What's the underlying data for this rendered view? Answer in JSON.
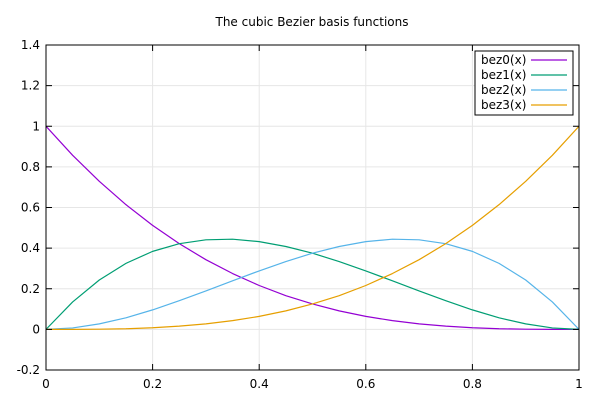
{
  "chart_data": {
    "type": "line",
    "title": "The cubic Bezier basis functions",
    "xlabel": "",
    "ylabel": "",
    "xlim": [
      0,
      1
    ],
    "ylim": [
      -0.2,
      1.4
    ],
    "x_ticks": [
      0,
      0.2,
      0.4,
      0.6,
      0.8,
      1
    ],
    "x_tick_labels": [
      "0",
      "0.2",
      "0.4",
      "0.6",
      "0.8",
      "1"
    ],
    "y_ticks": [
      -0.2,
      0,
      0.2,
      0.4,
      0.6,
      0.8,
      1,
      1.2,
      1.4
    ],
    "y_tick_labels": [
      "-0.2",
      "0",
      "0.2",
      "0.4",
      "0.6",
      "0.8",
      "1",
      "1.2",
      "1.4"
    ],
    "grid": true,
    "legend_position": "top-right",
    "x": [
      0,
      0.05,
      0.1,
      0.15,
      0.2,
      0.25,
      0.3,
      0.35,
      0.4,
      0.45,
      0.5,
      0.55,
      0.6,
      0.65,
      0.7,
      0.75,
      0.8,
      0.85,
      0.9,
      0.95,
      1
    ],
    "series": [
      {
        "name": "bez0(x)",
        "color": "#9400d3",
        "values": [
          1,
          0.857,
          0.729,
          0.614,
          0.512,
          0.422,
          0.343,
          0.275,
          0.216,
          0.166,
          0.125,
          0.091,
          0.064,
          0.043,
          0.027,
          0.016,
          0.008,
          0.003,
          0.001,
          0.0001,
          0
        ]
      },
      {
        "name": "bez1(x)",
        "color": "#009e73",
        "values": [
          0,
          0.135,
          0.243,
          0.325,
          0.384,
          0.422,
          0.441,
          0.444,
          0.432,
          0.408,
          0.375,
          0.334,
          0.288,
          0.239,
          0.189,
          0.141,
          0.096,
          0.057,
          0.027,
          0.007,
          0
        ]
      },
      {
        "name": "bez2(x)",
        "color": "#56b4e9",
        "values": [
          0,
          0.007,
          0.027,
          0.057,
          0.096,
          0.141,
          0.189,
          0.239,
          0.288,
          0.334,
          0.375,
          0.408,
          0.432,
          0.444,
          0.441,
          0.422,
          0.384,
          0.325,
          0.243,
          0.135,
          0
        ]
      },
      {
        "name": "bez3(x)",
        "color": "#e69f00",
        "values": [
          0,
          0.0001,
          0.001,
          0.003,
          0.008,
          0.016,
          0.027,
          0.043,
          0.064,
          0.091,
          0.125,
          0.166,
          0.216,
          0.275,
          0.343,
          0.422,
          0.512,
          0.614,
          0.729,
          0.857,
          1
        ]
      }
    ]
  }
}
